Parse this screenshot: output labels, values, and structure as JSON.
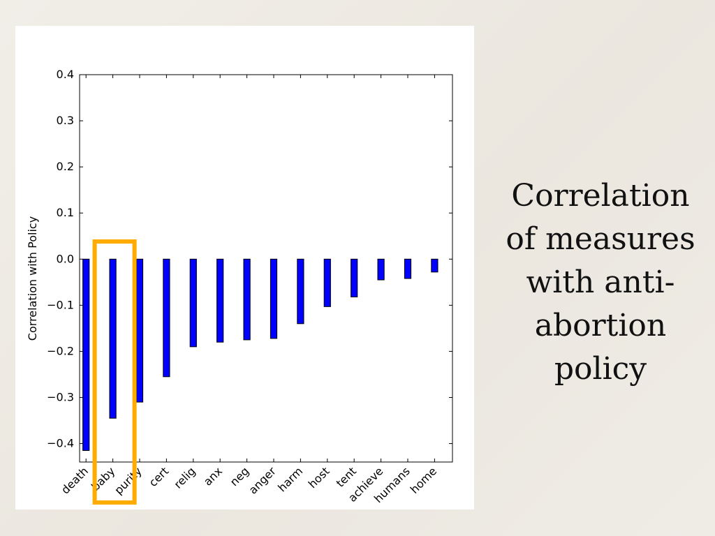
{
  "slide": {
    "caption_lines": [
      "Correlation",
      "of measures",
      "with anti-",
      "abortion",
      "policy"
    ]
  },
  "colors": {
    "bar": "#0000ff",
    "highlight": "#ffab00"
  },
  "chart_data": {
    "type": "bar",
    "title": "",
    "xlabel": "",
    "ylabel": "Correlation with Policy",
    "ylim": [
      -0.44,
      0.4
    ],
    "yticks": [
      0.4,
      0.3,
      0.2,
      0.1,
      0.0,
      -0.1,
      -0.2,
      -0.3,
      -0.4
    ],
    "ytick_labels": [
      "0.4",
      "0.3",
      "0.2",
      "0.1",
      "0.0",
      "−0.1",
      "−0.2",
      "−0.3",
      "−0.4"
    ],
    "categories": [
      "death",
      "baby",
      "purity",
      "cert",
      "relig",
      "anx",
      "neg",
      "anger",
      "harm",
      "host",
      "tent",
      "achieve",
      "humans",
      "home"
    ],
    "values": [
      -0.415,
      -0.345,
      -0.31,
      -0.255,
      -0.19,
      -0.18,
      -0.175,
      -0.172,
      -0.14,
      -0.103,
      -0.082,
      -0.045,
      -0.042,
      -0.028
    ],
    "highlighted_category": "baby",
    "grid": false
  }
}
